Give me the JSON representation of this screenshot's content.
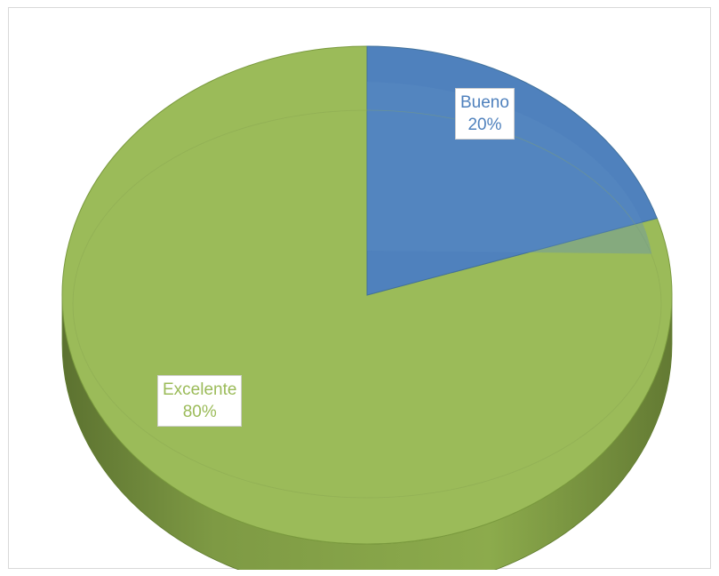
{
  "chart_data": {
    "type": "pie",
    "style": "3d",
    "title": "",
    "categories": [
      "Bueno",
      "Excelente"
    ],
    "values": [
      20,
      80
    ],
    "unit": "%",
    "data_labels": [
      {
        "category": "Bueno",
        "value": "20%"
      },
      {
        "category": "Excelente",
        "value": "80%"
      }
    ],
    "colors": {
      "Bueno": "#4f81bd",
      "Excelente": "#9bbb59"
    },
    "legend": "none"
  }
}
